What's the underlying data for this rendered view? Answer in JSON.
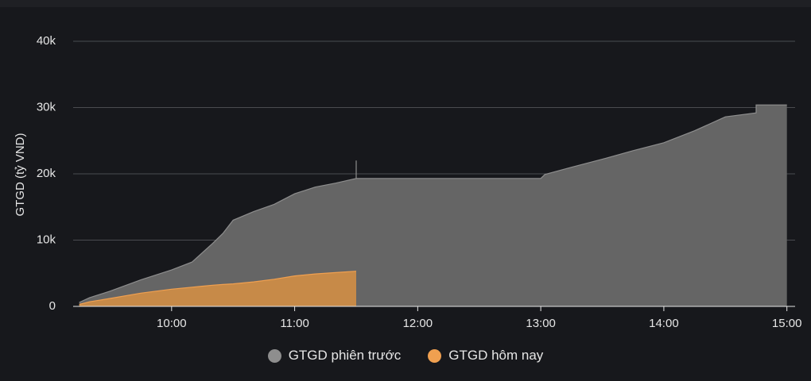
{
  "chart_data": {
    "type": "area",
    "y_label": "GTGD (tỷ VND)",
    "x": [
      "09:15",
      "09:20",
      "09:30",
      "09:45",
      "10:00",
      "10:10",
      "10:20",
      "10:25",
      "10:30",
      "10:40",
      "10:50",
      "11:00",
      "11:10",
      "11:20",
      "11:30",
      "11:30",
      "11:30",
      "13:00",
      "13:02",
      "13:15",
      "13:30",
      "13:45",
      "14:00",
      "14:15",
      "14:30",
      "14:45",
      "14:45",
      "15:00"
    ],
    "series": [
      {
        "name": "GTGD phiên trước",
        "color": "#8e8e8e",
        "fill": "#656565",
        "values": [
          600,
          1300,
          2300,
          4000,
          5500,
          6700,
          9500,
          11000,
          13000,
          14300,
          15400,
          17000,
          18000,
          18600,
          19300,
          22000,
          19300,
          19300,
          19900,
          21000,
          22200,
          23500,
          24700,
          26500,
          28600,
          29200,
          30400,
          30400
        ]
      },
      {
        "name": "GTGD hôm nay",
        "color": "#f0a050",
        "fill": "#c78a48",
        "values": [
          300,
          700,
          1200,
          2000,
          2600,
          2900,
          3200,
          3300,
          3400,
          3700,
          4100,
          4600,
          4900,
          5100,
          5300,
          null,
          null,
          null,
          null,
          null,
          null,
          null,
          null,
          null,
          null,
          null,
          null,
          null
        ]
      }
    ],
    "xlim": [
      "09:12",
      "15:04"
    ],
    "xticks": [
      "10:00",
      "11:00",
      "12:00",
      "13:00",
      "14:00",
      "15:00"
    ],
    "ylim": [
      0,
      40000
    ],
    "yticks": [
      0,
      {
        "value": 10000,
        "label": "10k"
      },
      {
        "value": 20000,
        "label": "20k"
      },
      {
        "value": 30000,
        "label": "30k"
      },
      {
        "value": 40000,
        "label": "40k"
      }
    ],
    "grid": true
  }
}
